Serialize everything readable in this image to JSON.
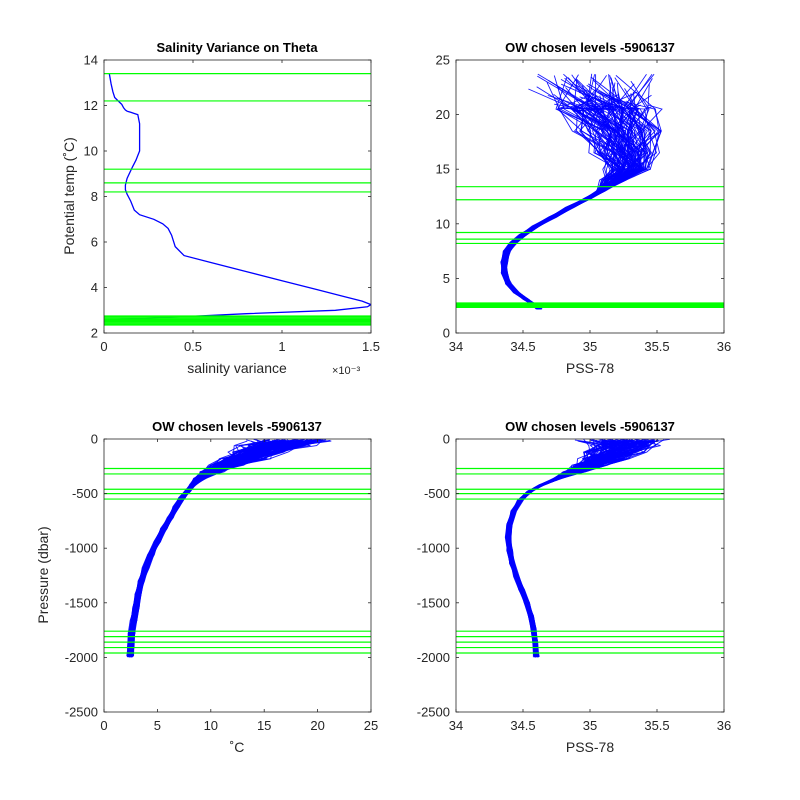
{
  "figure": {
    "background": "#ffffff",
    "profile_color": "#0000ff",
    "level_color": "#00ff00"
  },
  "chart_data": [
    {
      "id": "tl",
      "type": "line",
      "title": "Salinity Variance on Theta",
      "xlabel": "salinity variance",
      "ylabel": "Potential temp (˚C)",
      "x_multiplier": "×10⁻³",
      "xlim": [
        0,
        0.0015
      ],
      "ylim": [
        2,
        14
      ],
      "xticks": [
        0,
        0.0005,
        0.001,
        0.0015
      ],
      "xtick_labels": [
        "0",
        "0.5",
        "1",
        "1.5"
      ],
      "yticks": [
        2,
        4,
        6,
        8,
        10,
        12,
        14
      ],
      "ytick_labels": [
        "2",
        "4",
        "6",
        "8",
        "10",
        "12",
        "14"
      ],
      "grid": false,
      "series": [
        {
          "x": [
            3e-05,
            4e-05,
            5e-05,
            6e-05,
            8e-05,
            0.0001,
            0.00011,
            0.00012,
            0.00013,
            0.00015,
            0.00017,
            0.00019,
            0.0002,
            0.0002,
            0.0002,
            0.00019,
            0.00018,
            0.00016,
            0.00013,
            0.00012,
            0.00012,
            0.00013,
            0.00015,
            0.00017,
            0.0002,
            0.00028,
            0.00033,
            0.00036,
            0.00038,
            0.0004,
            0.00045,
            0.0006,
            0.0008,
            0.001,
            0.0012,
            0.00135,
            0.00145,
            0.0015,
            0.00148,
            0.0013,
            0.0008,
            0.0004,
            0.0002,
            0.0001,
            6e-05
          ],
          "y": [
            13.4,
            12.95,
            12.6,
            12.35,
            12.2,
            12.05,
            11.9,
            11.8,
            11.75,
            11.7,
            11.65,
            11.6,
            11.2,
            10.5,
            10.0,
            9.8,
            9.6,
            9.3,
            8.8,
            8.5,
            8.3,
            8.1,
            7.8,
            7.4,
            7.2,
            7.0,
            6.8,
            6.6,
            6.3,
            5.8,
            5.4,
            5.1,
            4.7,
            4.3,
            3.9,
            3.6,
            3.4,
            3.25,
            3.15,
            3.0,
            2.85,
            2.7,
            2.62,
            2.6,
            2.58
          ]
        }
      ],
      "levels": [
        13.4,
        12.2,
        9.2,
        8.6,
        8.2,
        2.75,
        2.7,
        2.65,
        2.6,
        2.55,
        2.5,
        2.45,
        2.4,
        2.35
      ]
    },
    {
      "id": "tr",
      "type": "line",
      "title": "OW chosen levels -5906137",
      "xlabel": "PSS-78",
      "ylabel": "",
      "xlim": [
        34,
        36
      ],
      "ylim": [
        0,
        25
      ],
      "xticks": [
        34,
        34.5,
        35,
        35.5,
        36
      ],
      "xtick_labels": [
        "34",
        "34.5",
        "35",
        "35.5",
        "36"
      ],
      "yticks": [
        0,
        5,
        10,
        15,
        20,
        25
      ],
      "ytick_labels": [
        "0",
        "5",
        "10",
        "15",
        "20",
        "25"
      ],
      "grid": false,
      "series": [
        {
          "x": [
            35.02,
            35.12,
            35.2,
            35.25,
            35.28,
            35.18,
            35.08,
            34.98,
            34.85,
            34.72,
            34.6,
            34.5,
            34.43,
            34.38,
            34.36,
            34.36,
            34.39,
            34.45,
            34.52,
            34.58,
            34.62
          ],
          "y": [
            22.0,
            20.5,
            18.5,
            16.5,
            15.0,
            14.0,
            13.0,
            12.3,
            11.5,
            10.6,
            9.8,
            9.0,
            8.3,
            7.5,
            6.5,
            5.5,
            4.5,
            3.7,
            3.1,
            2.6,
            2.2
          ]
        }
      ],
      "levels": [
        13.4,
        12.2,
        9.2,
        8.6,
        8.2,
        2.75,
        2.7,
        2.65,
        2.6,
        2.55,
        2.5,
        2.45,
        2.4,
        2.35
      ]
    },
    {
      "id": "bl",
      "type": "line",
      "title": "OW chosen levels -5906137",
      "xlabel": "˚C",
      "ylabel": "Pressure (dbar)",
      "xlim": [
        0,
        25
      ],
      "ylim": [
        -2500,
        0
      ],
      "xticks": [
        0,
        5,
        10,
        15,
        20,
        25
      ],
      "xtick_labels": [
        "0",
        "5",
        "10",
        "15",
        "20",
        "25"
      ],
      "yticks": [
        -2500,
        -2000,
        -1500,
        -1000,
        -500,
        0
      ],
      "ytick_labels": [
        "-2500",
        "-2000",
        "-1500",
        "-1000",
        "-500",
        "0"
      ],
      "grid": false,
      "series": [
        {
          "x": [
            17.5,
            16.0,
            14.5,
            13.0,
            11.5,
            10.0,
            9.0,
            8.3,
            7.8,
            7.3,
            6.8,
            6.2,
            5.6,
            5.0,
            4.4,
            3.9,
            3.5,
            3.2,
            3.0,
            2.8,
            2.6,
            2.5,
            2.45
          ],
          "y": [
            0,
            -60,
            -120,
            -180,
            -240,
            -300,
            -360,
            -420,
            -480,
            -540,
            -620,
            -720,
            -820,
            -940,
            -1060,
            -1180,
            -1300,
            -1420,
            -1540,
            -1660,
            -1780,
            -1900,
            -2000
          ]
        }
      ],
      "levels": [
        -270,
        -320,
        -460,
        -500,
        -550,
        -1760,
        -1810,
        -1860,
        -1910,
        -1960
      ]
    },
    {
      "id": "br",
      "type": "line",
      "title": "OW chosen levels -5906137",
      "xlabel": "PSS-78",
      "ylabel": "",
      "xlim": [
        34,
        36
      ],
      "ylim": [
        -2500,
        0
      ],
      "xticks": [
        34,
        34.5,
        35,
        35.5,
        36
      ],
      "xtick_labels": [
        "34",
        "34.5",
        "35",
        "35.5",
        "36"
      ],
      "yticks": [
        -2500,
        -2000,
        -1500,
        -1000,
        -500,
        0
      ],
      "ytick_labels": [
        "-2500",
        "-2000",
        "-1500",
        "-1000",
        "-500",
        "0"
      ],
      "grid": false,
      "series": [
        {
          "x": [
            35.25,
            35.23,
            35.18,
            35.1,
            35.0,
            34.88,
            34.76,
            34.64,
            34.55,
            34.48,
            34.43,
            34.4,
            34.39,
            34.4,
            34.42,
            34.45,
            34.49,
            34.53,
            34.56,
            34.58,
            34.59,
            34.6
          ],
          "y": [
            0,
            -60,
            -120,
            -180,
            -240,
            -300,
            -360,
            -420,
            -480,
            -560,
            -660,
            -780,
            -900,
            -1020,
            -1140,
            -1260,
            -1380,
            -1500,
            -1620,
            -1740,
            -1860,
            -2000
          ]
        }
      ],
      "levels": [
        -270,
        -320,
        -460,
        -500,
        -550,
        -1760,
        -1810,
        -1860,
        -1910,
        -1960
      ]
    }
  ]
}
